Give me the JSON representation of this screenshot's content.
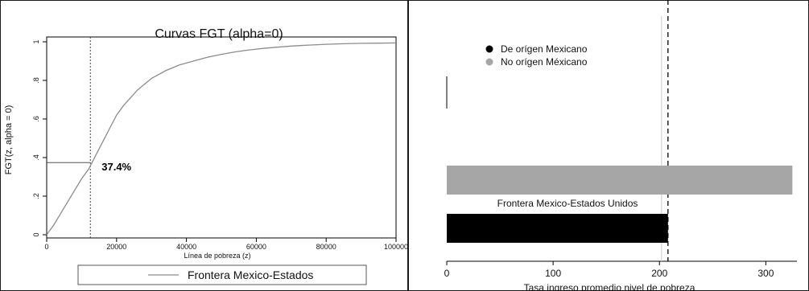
{
  "chart_data": [
    {
      "type": "line",
      "title": "Curvas FGT (alpha=0)",
      "title_main": "Curvas",
      "title_fgt": "FGT",
      "title_alpha": "(alpha=0)",
      "xlabel": "Línea de pobreza (z)",
      "ylabel": "FGT(z, alpha = 0)",
      "xlim": [
        0,
        100000
      ],
      "ylim": [
        0,
        1
      ],
      "xticks": [
        0,
        20000,
        40000,
        60000,
        80000,
        100000
      ],
      "xtick_labels": [
        "0",
        "20000",
        "40000",
        "60000",
        "80000",
        "100000"
      ],
      "yticks": [
        0,
        0.2,
        0.4,
        0.6,
        0.8,
        1
      ],
      "ytick_labels": [
        "0",
        ".2",
        ".4",
        ".6",
        ".8",
        "1"
      ],
      "series": [
        {
          "name": "Frontera Mexico-Estados",
          "color": "#8c8c8c",
          "x": [
            0,
            2000,
            4000,
            6000,
            8000,
            10000,
            12000,
            14000,
            16000,
            18000,
            20000,
            22000,
            24000,
            26000,
            28000,
            30000,
            32000,
            34000,
            36000,
            38000,
            40000,
            43000,
            46000,
            50000,
            54000,
            58000,
            62000,
            66000,
            70000,
            75000,
            80000,
            85000,
            90000,
            95000,
            100000
          ],
          "y": [
            0,
            0.05,
            0.11,
            0.17,
            0.23,
            0.29,
            0.34,
            0.41,
            0.48,
            0.55,
            0.62,
            0.67,
            0.71,
            0.75,
            0.78,
            0.81,
            0.83,
            0.85,
            0.865,
            0.88,
            0.89,
            0.905,
            0.92,
            0.935,
            0.948,
            0.958,
            0.966,
            0.972,
            0.978,
            0.983,
            0.987,
            0.99,
            0.992,
            0.993,
            0.994
          ]
        }
      ],
      "reference_x": 12500,
      "annotation": "37.4%",
      "annotation_value": 0.374,
      "legend": "bottom",
      "grid": false
    },
    {
      "type": "bar",
      "orientation": "horizontal",
      "categories": [
        "No orígen Méxicano",
        "De orígen Mexicano"
      ],
      "values": [
        325,
        208
      ],
      "colors": [
        "#a6a6a6",
        "#000000"
      ],
      "group_label": "Frontera Mexico-Estados Unidos",
      "xlabel": "Tasa ingreso promedio nivel de pobreza",
      "xlim": [
        0,
        330
      ],
      "xticks": [
        0,
        100,
        200,
        300
      ],
      "xtick_labels": [
        "0",
        "100",
        "200",
        "300"
      ],
      "reference_x": 208,
      "legend_entries": [
        {
          "label": "De orígen Mexicano",
          "color": "#000000"
        },
        {
          "label": "No orígen Méxicano",
          "color": "#a6a6a6"
        }
      ],
      "legend": "top-left",
      "grid": false
    }
  ]
}
